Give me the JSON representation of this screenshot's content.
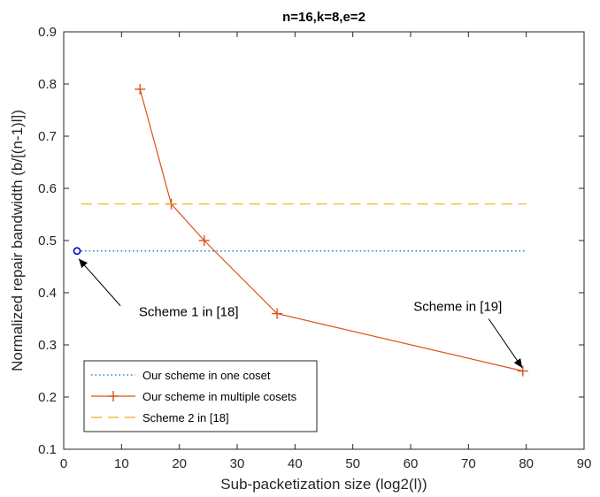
{
  "chart_data": {
    "type": "line",
    "title": "n=16,k=8,e=2",
    "xlabel": "Sub-packetization size (log2(l))",
    "ylabel": "Normalized repair bandwidth (b/[(n-1)l])",
    "xlim": [
      0,
      90
    ],
    "ylim": [
      0.1,
      0.9
    ],
    "xticks": [
      0,
      10,
      20,
      30,
      40,
      50,
      60,
      70,
      80,
      90
    ],
    "yticks": [
      0.1,
      0.2,
      0.3,
      0.4,
      0.5,
      0.6,
      0.7,
      0.8,
      0.9
    ],
    "xtick_labels": [
      "0",
      "10",
      "20",
      "30",
      "40",
      "50",
      "60",
      "70",
      "80",
      "90"
    ],
    "ytick_labels": [
      "0.1",
      "0.2",
      "0.3",
      "0.4",
      "0.5",
      "0.6",
      "0.7",
      "0.8",
      "0.9"
    ],
    "grid": false,
    "legend_position": "bottom-left",
    "series": [
      {
        "name": "Our scheme in one coset",
        "style": "dotted",
        "color": "#0072BD",
        "x": [
          3,
          80
        ],
        "y": [
          0.48,
          0.48
        ]
      },
      {
        "name": "Our scheme in multiple cosets",
        "style": "solid",
        "marker": "+",
        "color": "#D95319",
        "x": [
          13.2,
          18.6,
          24.3,
          36.9,
          79.4
        ],
        "y": [
          0.79,
          0.57,
          0.5,
          0.36,
          0.25
        ]
      },
      {
        "name": "Scheme 2 in [18]",
        "style": "dashed",
        "color": "#EDB120",
        "x": [
          3,
          80
        ],
        "y": [
          0.57,
          0.57
        ]
      }
    ],
    "extra_points": [
      {
        "label": "o",
        "color": "#0000CC",
        "x": 2.3,
        "y": 0.48
      }
    ],
    "annotations": [
      {
        "text": "Scheme 1 in [18]",
        "x": 13,
        "y": 0.355,
        "arrow_from": [
          9.8,
          0.375
        ],
        "arrow_to": [
          2.6,
          0.465
        ]
      },
      {
        "text": "Scheme in [19]",
        "x": 60.5,
        "y": 0.365,
        "arrow_from": [
          73.5,
          0.35
        ],
        "arrow_to": [
          79.3,
          0.256
        ]
      }
    ]
  }
}
